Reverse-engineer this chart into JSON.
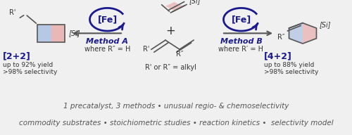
{
  "bg_color": "#f0f0f0",
  "panel_bg": "#ffffff",
  "bottom_bg": "#e8e8e8",
  "fe_circle_color": "#1a1a8c",
  "blue_text": "#1a1a8c",
  "arrow_color": "#1a1a8c",
  "red_fill": "#e8a0a0",
  "blue_fill": "#a0b8e0",
  "text_color": "#333333",
  "label_22": "[2+2]",
  "label_42": "[4+2]",
  "yield_22": "up to 92% yield",
  "sel_22": ">98% selectivity",
  "yield_42": "up to 88% yield",
  "sel_42": ">98% selectivity",
  "method_a": "Method A",
  "method_a_sub": "where R″ = H",
  "method_b": "Method B",
  "method_b_sub": "where R′ = H",
  "reagent_label": "R′ or R″ = alkyl",
  "bottom_line1": "1 precatalyst, 3 methods • unusual regio- & chemoselectivity",
  "bottom_line2": "commodity substrates • stoichiometric studies • reaction kinetics •  selectivity model",
  "figwidth": 5.0,
  "figheight": 1.92,
  "dpi": 100
}
